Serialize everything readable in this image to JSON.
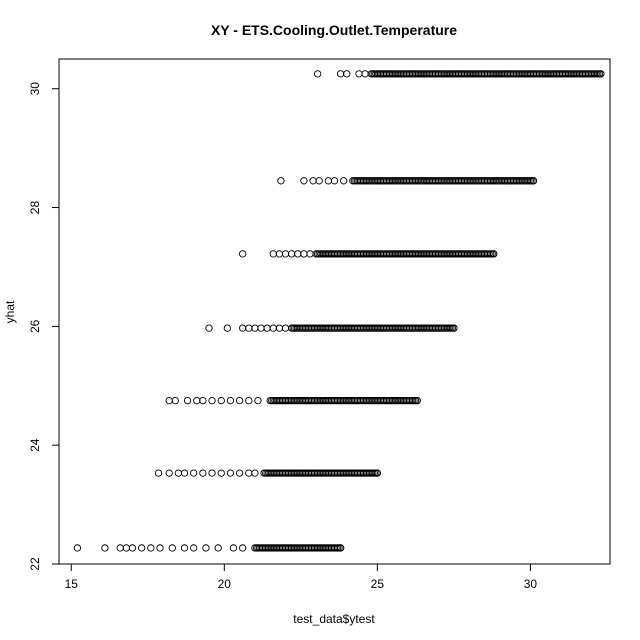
{
  "chart_data": {
    "type": "scatter",
    "title": "XY - ETS.Cooling.Outlet.Temperature",
    "xlabel": "test_data$ytest",
    "ylabel": "yhat",
    "xlim": [
      14.6,
      32.6
    ],
    "ylim": [
      22.0,
      30.5
    ],
    "xticks": [
      15,
      20,
      25,
      30
    ],
    "yticks": [
      22,
      24,
      26,
      28,
      30
    ],
    "grid": false,
    "series": [
      {
        "marker": "open-circle",
        "levels": [
          {
            "y": 22.27,
            "x_min": 15.2,
            "x_dense_start": 21.0,
            "x_max": 23.8,
            "x_outliers": [
              15.2,
              16.1,
              16.6,
              16.8,
              17.0,
              17.3,
              17.6,
              17.9,
              18.3,
              18.7,
              19.0,
              19.4,
              19.8,
              20.3,
              20.6
            ]
          },
          {
            "y": 23.53,
            "x_min": 17.85,
            "x_dense_start": 21.3,
            "x_max": 25.0,
            "x_outliers": [
              17.85,
              18.2,
              18.5,
              18.7,
              19.0,
              19.3,
              19.6,
              19.9,
              20.2,
              20.5,
              20.8,
              21.0
            ]
          },
          {
            "y": 24.75,
            "x_min": 18.2,
            "x_dense_start": 21.5,
            "x_max": 26.3,
            "x_outliers": [
              18.2,
              18.4,
              18.8,
              19.1,
              19.3,
              19.6,
              19.9,
              20.2,
              20.5,
              20.8,
              21.1
            ]
          },
          {
            "y": 25.97,
            "x_min": 19.5,
            "x_dense_start": 22.2,
            "x_max": 27.5,
            "x_outliers": [
              19.5,
              20.1,
              20.6,
              20.8,
              21.0,
              21.2,
              21.4,
              21.6,
              21.8,
              22.0
            ]
          },
          {
            "y": 27.22,
            "x_min": 20.6,
            "x_dense_start": 23.0,
            "x_max": 28.8,
            "x_outliers": [
              20.6,
              21.6,
              21.8,
              22.0,
              22.2,
              22.4,
              22.6,
              22.8
            ]
          },
          {
            "y": 28.45,
            "x_min": 21.85,
            "x_dense_start": 24.2,
            "x_max": 30.1,
            "x_outliers": [
              21.85,
              22.6,
              22.9,
              23.1,
              23.4,
              23.6,
              23.9
            ]
          },
          {
            "y": 30.25,
            "x_min": 23.05,
            "x_dense_start": 24.8,
            "x_max": 32.3,
            "x_outliers": [
              23.05,
              23.8,
              24.0,
              24.4,
              24.6
            ]
          }
        ]
      }
    ]
  }
}
